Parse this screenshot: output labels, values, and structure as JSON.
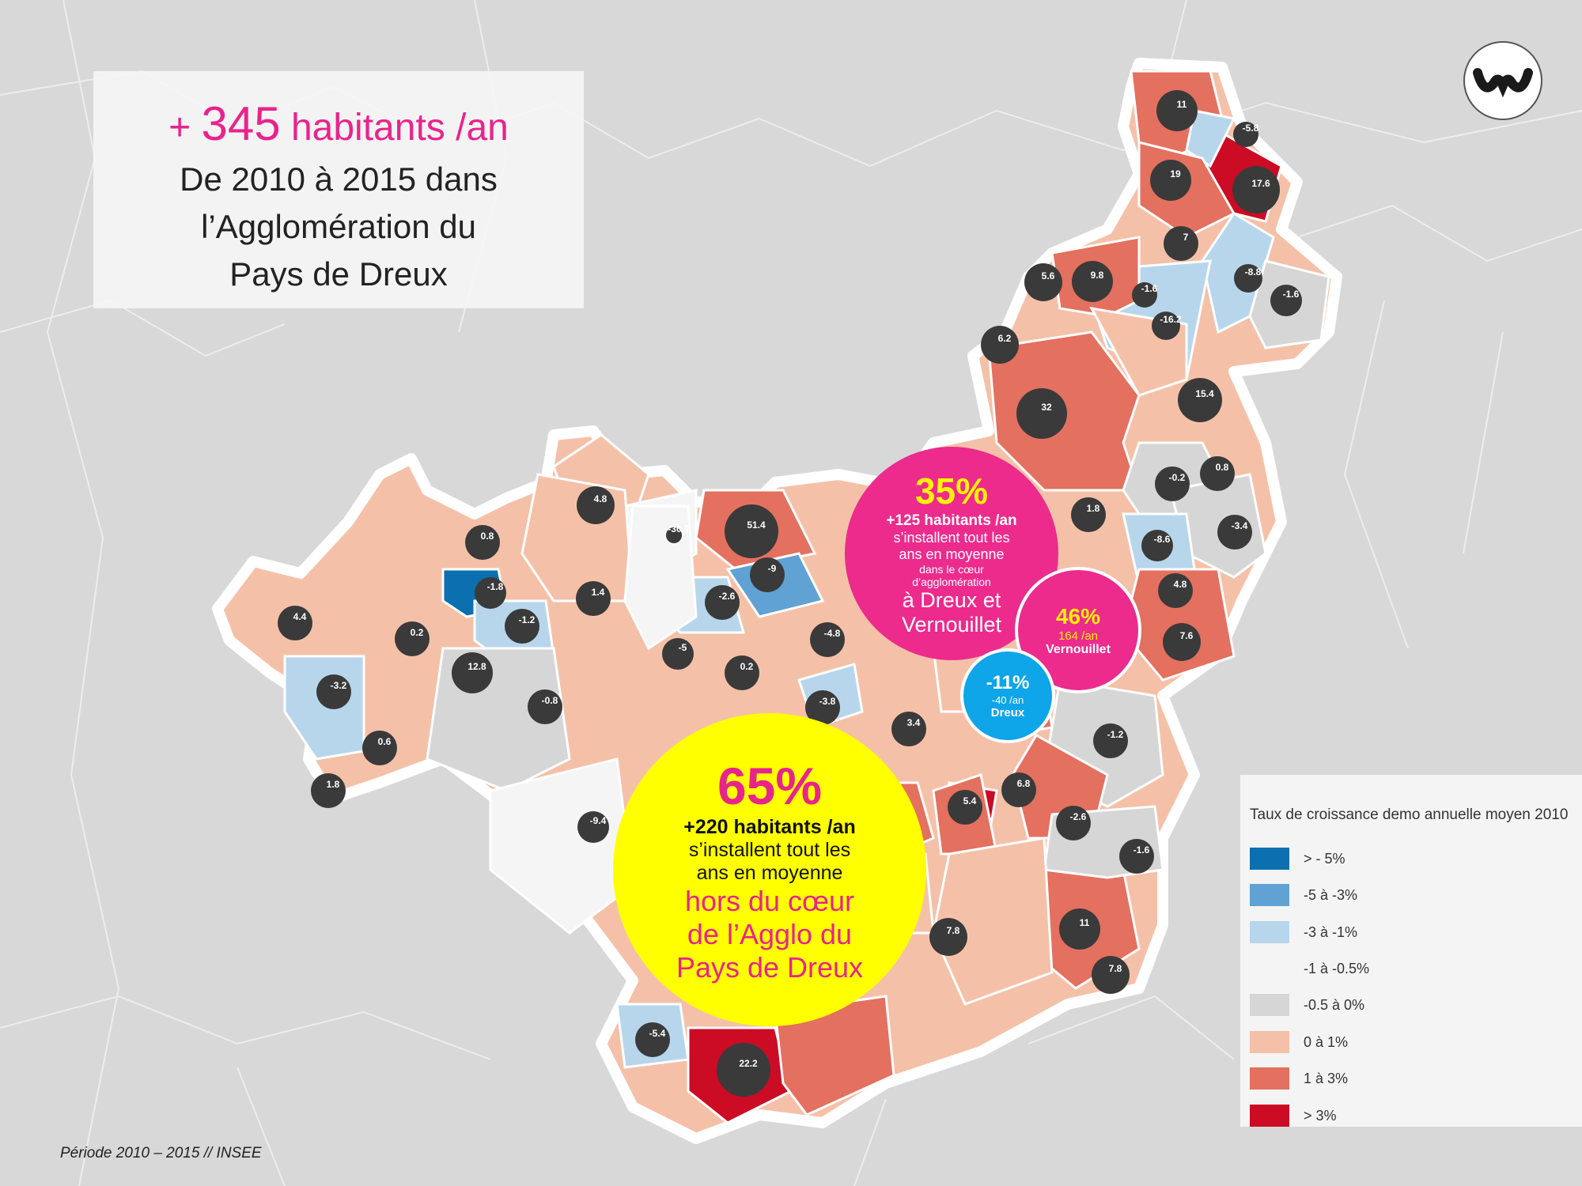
{
  "headline": {
    "prefix": "+ ",
    "number": "345",
    "suffix": " habitants /an",
    "subtitle": "De 2010 à 2015 dans\nl’Agglomération du\nPays de Dreux"
  },
  "colors": {
    "accent_pink": "#e8248c",
    "accent_yellow": "#ffff00",
    "accent_blue": "#0ea5e9"
  },
  "legend": {
    "title": "Taux de croissance demo annuelle moyen 2010",
    "items": [
      {
        "label": "> - 5%",
        "color": "#0b6fb0"
      },
      {
        "label": "-5 à -3%",
        "color": "#5fa2d3"
      },
      {
        "label": "-3 à -1%",
        "color": "#b7d6ec"
      },
      {
        "label": "-1 à -0.5%",
        "color": "#f5f5f5"
      },
      {
        "label": "-0.5 à 0%",
        "color": "#d6d6d6"
      },
      {
        "label": "0 à 1%",
        "color": "#f4c1a8"
      },
      {
        "label": "1 à 3%",
        "color": "#e4705f"
      },
      {
        "label": "> 3%",
        "color": "#cc0b25"
      }
    ]
  },
  "stats": {
    "core": {
      "percent": "35%",
      "line1": "+125 habitants /an",
      "line2": "s’installent tout les",
      "line3": "ans en moyenne",
      "line4": "dans le cœur",
      "line5": "d’agglomération",
      "line6": "à Dreux et",
      "line7": "Vernouillet"
    },
    "vernouillet": {
      "percent": "46%",
      "rate": "164 /an",
      "name": "Vernouillet"
    },
    "dreux": {
      "percent": "-11%",
      "rate": "-40 /an",
      "name": "Dreux"
    },
    "outer": {
      "percent": "65%",
      "line1": "+220 habitants /an",
      "line2": "s’installent tout les",
      "line3": "ans en moyenne",
      "line4": "hors du cœur",
      "line5": "de l’Agglo du",
      "line6": "Pays de Dreux"
    }
  },
  "commune_values": [
    "11",
    "-5.8",
    "17.6",
    "19",
    "7",
    "-8.8",
    "-1.6",
    "5.6",
    "9.8",
    "-1.6",
    "-16.2",
    "6.2",
    "15.4",
    "32",
    "-0.2",
    "0.8",
    "1.8",
    "-3.4",
    "-8.6",
    "4.8",
    "7.6",
    "4.8",
    "-30.2",
    "51.4",
    "0.8",
    "-1.8",
    "-1.2",
    "1.4",
    "-9",
    "-2.6",
    "4.4",
    "0.2",
    "-3.2",
    "12.8",
    "-0.8",
    "-5",
    "0.2",
    "-4.8",
    "-3.8",
    "3.4",
    "0.6",
    "1.8",
    "-9.4",
    "5.4",
    "6.8",
    "-1.2",
    "-2.6",
    "-1.6",
    "11",
    "7.8",
    "7.8",
    "-5.4",
    "22.2"
  ],
  "source": "Période 2010 – 2015 //  INSEE"
}
